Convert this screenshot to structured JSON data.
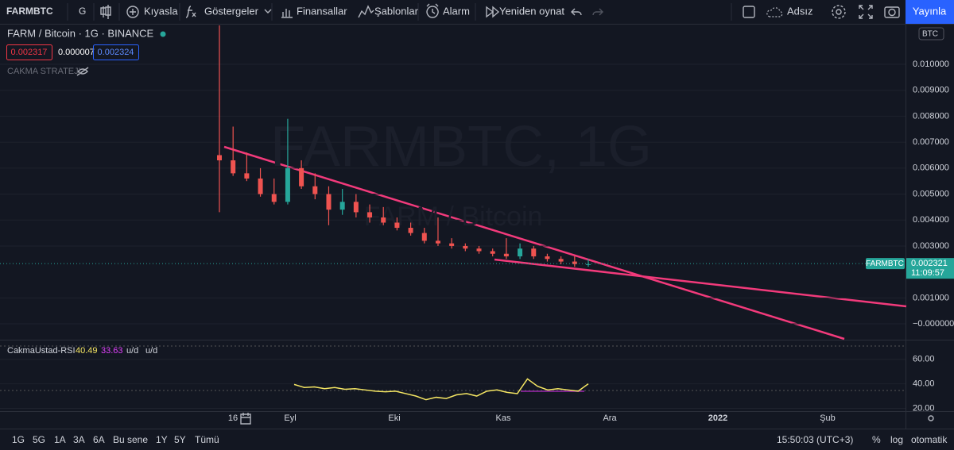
{
  "toolbar": {
    "symbol": "FARMBTC",
    "interval": "G",
    "items": [
      "Kıyasla",
      "Göstergeler",
      "Finansallar",
      "Şablonlar",
      "Alarm",
      "Yeniden oynat"
    ],
    "layout_name": "Adsız",
    "publish": "Yayınla"
  },
  "legend": {
    "title": "FARM / Bitcoin · 1G · BINANCE",
    "values": [
      "0.002317",
      "0.000007",
      "0.002324"
    ],
    "strategy": "CAKMA STRATEJI"
  },
  "watermark": {
    "main": "FARMBTC, 1G",
    "sub": "FARM / Bitcoin"
  },
  "time_axis": [
    "16",
    "Eyl",
    "Eki",
    "Kas",
    "Ara",
    "2022",
    "Şub"
  ],
  "chart_data": [
    {
      "type": "candlestick",
      "currency": "BTC",
      "open": [
        0.0065,
        0.0063,
        0.0058,
        0.0056,
        0.005,
        0.0047,
        0.006,
        0.0053,
        0.005,
        0.0044,
        0.0047,
        0.0043,
        0.0041,
        0.0039,
        0.0037,
        0.0035,
        0.0032,
        0.0031,
        0.003,
        0.0029,
        0.0028,
        0.0027,
        0.0026,
        0.0029,
        0.0026,
        0.0025,
        0.0024,
        0.0023
      ],
      "high": [
        0.0115,
        0.0076,
        0.0066,
        0.006,
        0.0056,
        0.0079,
        0.0063,
        0.0058,
        0.0053,
        0.0052,
        0.005,
        0.0046,
        0.0045,
        0.0041,
        0.0039,
        0.0037,
        0.0041,
        0.0033,
        0.0031,
        0.003,
        0.0029,
        0.0033,
        0.0031,
        0.003,
        0.0027,
        0.0026,
        0.0026,
        0.0025
      ],
      "low": [
        0.0043,
        0.0057,
        0.0055,
        0.0049,
        0.0046,
        0.0046,
        0.0052,
        0.0048,
        0.0038,
        0.0042,
        0.0041,
        0.0039,
        0.0038,
        0.0036,
        0.0034,
        0.0031,
        0.003,
        0.0029,
        0.0028,
        0.0027,
        0.0026,
        0.0025,
        0.0025,
        0.0025,
        0.0024,
        0.0023,
        0.0022,
        0.0022
      ],
      "close": [
        0.0063,
        0.0058,
        0.0056,
        0.005,
        0.0047,
        0.006,
        0.0053,
        0.005,
        0.0044,
        0.0047,
        0.0043,
        0.0041,
        0.0039,
        0.0037,
        0.0035,
        0.0032,
        0.0031,
        0.003,
        0.0029,
        0.0028,
        0.0027,
        0.0026,
        0.0029,
        0.0026,
        0.0025,
        0.0024,
        0.0023,
        0.0023
      ],
      "colors": {
        "up": "#26a69a",
        "down": "#ef5350"
      },
      "ylim": [
        -0.00061,
        0.01156
      ],
      "yticks": [
        {
          "value": 0,
          "label": "−0.000000"
        },
        {
          "value": 0.001,
          "label": "0.001000"
        },
        {
          "value": 0.003,
          "label": "0.003000"
        },
        {
          "value": 0.004,
          "label": "0.004000"
        },
        {
          "value": 0.005,
          "label": "0.005000"
        },
        {
          "value": 0.006,
          "label": "0.006000"
        },
        {
          "value": 0.007,
          "label": "0.007000"
        },
        {
          "value": 0.008,
          "label": "0.008000"
        },
        {
          "value": 0.009,
          "label": "0.009000"
        },
        {
          "value": 0.01,
          "label": "0.010000"
        }
      ],
      "last_price": {
        "symbol": "FARMBTC",
        "value": 0.002321,
        "countdown": "11:09:57"
      }
    },
    {
      "type": "line",
      "name": "CakmaUstad-RSI",
      "legend_values": [
        40.49,
        33.63
      ],
      "legend_labels": [
        "u/d",
        "u/d"
      ],
      "color": "#f5e663",
      "values": [
        39.5,
        37,
        37.5,
        36,
        37,
        35.5,
        36,
        35,
        34,
        33.5,
        34,
        32,
        30,
        27,
        29,
        28,
        31,
        32,
        30,
        34,
        35,
        33,
        32,
        44,
        38,
        35,
        36,
        35,
        34,
        40
      ],
      "ylim": [
        17.7,
        75.4
      ],
      "yticks": [
        {
          "value": 20,
          "label": "20.00"
        },
        {
          "value": 40,
          "label": "40.00"
        },
        {
          "value": 60,
          "label": "60.00"
        }
      ]
    }
  ],
  "bottom_bar": {
    "ranges": [
      "1G",
      "5G",
      "1A",
      "3A",
      "6A",
      "Bu sene",
      "1Y",
      "5Y",
      "Tümü"
    ],
    "clock": "15:50:03 (UTC+3)",
    "percent": "%",
    "log": "log",
    "auto": "otomatik"
  }
}
